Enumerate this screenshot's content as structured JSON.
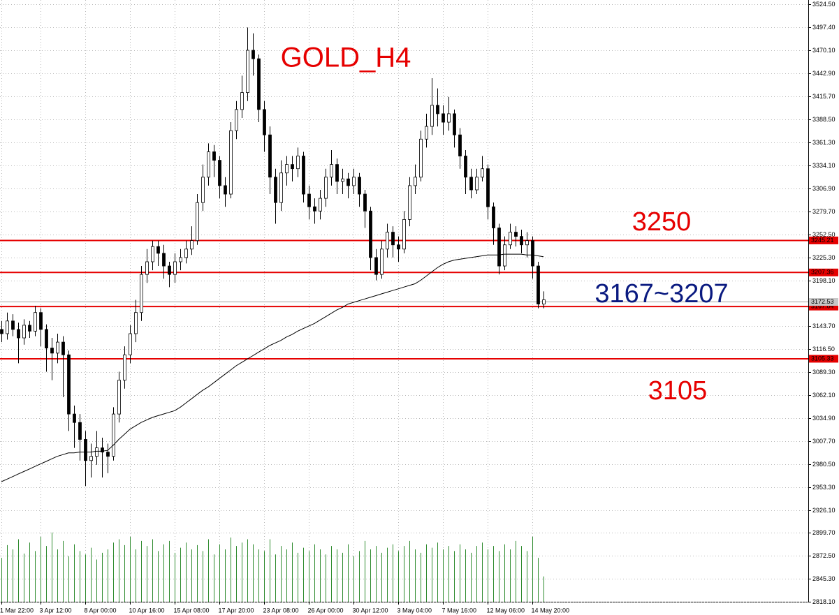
{
  "chart_data": {
    "type": "candlestick",
    "title": "GOLD_H4",
    "categories": [
      "1 Mar 22:00",
      null,
      null,
      null,
      null,
      null,
      null,
      "3 Apr 12:00",
      null,
      null,
      null,
      null,
      null,
      null,
      null,
      "8 Apr 00:00",
      null,
      null,
      null,
      null,
      null,
      null,
      null,
      "10 Apr 16:00",
      null,
      null,
      null,
      null,
      null,
      null,
      null,
      "15 Apr 08:00",
      null,
      null,
      null,
      null,
      null,
      null,
      null,
      "17 Apr 20:00",
      null,
      null,
      null,
      null,
      null,
      null,
      null,
      "23 Apr 08:00",
      null,
      null,
      null,
      null,
      null,
      null,
      null,
      "26 Apr 00:00",
      null,
      null,
      null,
      null,
      null,
      null,
      null,
      "30 Apr 12:00",
      null,
      null,
      null,
      null,
      null,
      null,
      null,
      "3 May 04:00",
      null,
      null,
      null,
      null,
      null,
      null,
      null,
      "7 May 16:00",
      null,
      null,
      null,
      null,
      null,
      null,
      null,
      "12 May 06:00",
      null,
      null,
      null,
      null,
      null,
      null,
      null,
      "14 May 20:00",
      null,
      null
    ],
    "open": [
      3140,
      3135,
      3150,
      3140,
      3130,
      3145,
      3138,
      3160,
      3140,
      3118,
      3112,
      3125,
      3110,
      3040,
      3030,
      3010,
      2985,
      2990,
      3000,
      2995,
      2990,
      3040,
      3080,
      3110,
      3135,
      3160,
      3205,
      3220,
      3238,
      3230,
      3215,
      3205,
      3220,
      3225,
      3235,
      3245,
      3290,
      3320,
      3350,
      3340,
      3310,
      3300,
      3375,
      3400,
      3420,
      3470,
      3460,
      3400,
      3370,
      3320,
      3290,
      3325,
      3335,
      3330,
      3345,
      3300,
      3285,
      3280,
      3295,
      3320,
      3335,
      3315,
      3318,
      3310,
      3320,
      3300,
      3280,
      3225,
      3205,
      3235,
      3255,
      3240,
      3235,
      3270,
      3310,
      3320,
      3365,
      3380,
      3405,
      3395,
      3385,
      3395,
      3370,
      3345,
      3320,
      3305,
      3320,
      3330,
      3285,
      3260,
      3215,
      3240,
      3255,
      3250,
      3240,
      3245,
      3215,
      3170
    ],
    "high": [
      3150,
      3160,
      3158,
      3148,
      3152,
      3150,
      3168,
      3165,
      3146,
      3130,
      3135,
      3132,
      3115,
      3050,
      3040,
      3020,
      3005,
      3020,
      3012,
      3005,
      3048,
      3090,
      3120,
      3145,
      3175,
      3215,
      3235,
      3245,
      3245,
      3240,
      3220,
      3230,
      3235,
      3245,
      3262,
      3300,
      3335,
      3360,
      3358,
      3345,
      3320,
      3385,
      3410,
      3440,
      3497,
      3490,
      3465,
      3410,
      3380,
      3330,
      3340,
      3345,
      3345,
      3355,
      3350,
      3310,
      3295,
      3305,
      3330,
      3352,
      3342,
      3330,
      3325,
      3330,
      3325,
      3305,
      3285,
      3235,
      3245,
      3265,
      3262,
      3250,
      3280,
      3320,
      3335,
      3375,
      3395,
      3437,
      3425,
      3405,
      3415,
      3400,
      3378,
      3352,
      3330,
      3330,
      3345,
      3335,
      3290,
      3265,
      3250,
      3265,
      3262,
      3258,
      3255,
      3250,
      3220,
      3185
    ],
    "low": [
      3125,
      3128,
      3132,
      3100,
      3122,
      3130,
      3132,
      3120,
      3090,
      3080,
      3100,
      3060,
      3020,
      3000,
      2985,
      2955,
      2965,
      2980,
      2965,
      2970,
      2985,
      3030,
      3070,
      3100,
      3125,
      3150,
      3195,
      3210,
      3215,
      3200,
      3190,
      3195,
      3210,
      3218,
      3228,
      3240,
      3280,
      3310,
      3320,
      3295,
      3285,
      3295,
      3365,
      3390,
      3410,
      3440,
      3385,
      3350,
      3300,
      3265,
      3280,
      3310,
      3315,
      3320,
      3290,
      3270,
      3265,
      3270,
      3285,
      3310,
      3300,
      3300,
      3295,
      3300,
      3285,
      3260,
      3210,
      3198,
      3200,
      3225,
      3225,
      3220,
      3230,
      3262,
      3300,
      3315,
      3355,
      3370,
      3380,
      3370,
      3375,
      3355,
      3330,
      3300,
      3295,
      3300,
      3315,
      3270,
      3240,
      3205,
      3210,
      3235,
      3238,
      3230,
      3225,
      3200,
      3165,
      3165
    ],
    "close": [
      3135,
      3150,
      3140,
      3130,
      3145,
      3138,
      3160,
      3140,
      3118,
      3112,
      3125,
      3110,
      3040,
      3030,
      3010,
      2985,
      2990,
      3000,
      2995,
      2990,
      3040,
      3080,
      3110,
      3135,
      3160,
      3205,
      3220,
      3238,
      3230,
      3215,
      3205,
      3220,
      3225,
      3235,
      3245,
      3290,
      3320,
      3350,
      3340,
      3310,
      3300,
      3375,
      3400,
      3420,
      3470,
      3460,
      3400,
      3370,
      3320,
      3290,
      3325,
      3335,
      3330,
      3345,
      3300,
      3285,
      3280,
      3295,
      3320,
      3335,
      3315,
      3318,
      3310,
      3320,
      3300,
      3280,
      3225,
      3205,
      3235,
      3255,
      3240,
      3235,
      3270,
      3310,
      3320,
      3365,
      3380,
      3405,
      3395,
      3385,
      3395,
      3370,
      3345,
      3320,
      3305,
      3320,
      3330,
      3285,
      3260,
      3215,
      3240,
      3255,
      3250,
      3240,
      3245,
      3215,
      3170,
      3175
    ],
    "ma": [
      2960,
      2963,
      2966,
      2969,
      2972,
      2975,
      2978,
      2981,
      2984,
      2987,
      2990,
      2992,
      2994,
      2994,
      2995,
      2995,
      2995,
      2996,
      2996,
      2997,
      3003,
      3010,
      3016,
      3022,
      3026,
      3030,
      3033,
      3036,
      3038,
      3040,
      3042,
      3044,
      3048,
      3053,
      3058,
      3063,
      3068,
      3072,
      3077,
      3082,
      3087,
      3092,
      3097,
      3101,
      3105,
      3109,
      3113,
      3117,
      3121,
      3124,
      3127,
      3131,
      3134,
      3138,
      3141,
      3144,
      3147,
      3151,
      3155,
      3159,
      3163,
      3166,
      3170,
      3172,
      3174,
      3176,
      3178,
      3180,
      3182,
      3184,
      3186,
      3188,
      3190,
      3192,
      3194,
      3198,
      3203,
      3208,
      3213,
      3217,
      3220,
      3222,
      3223,
      3224,
      3225,
      3226,
      3227,
      3228,
      3228,
      3228,
      3229,
      3229,
      3229,
      3229,
      3228,
      3228,
      3227,
      3226
    ],
    "volume": [
      2870,
      2885,
      2880,
      2892,
      2875,
      2888,
      2878,
      2895,
      2884,
      2900,
      2880,
      2890,
      2872,
      2886,
      2878,
      2874,
      2882,
      2868,
      2876,
      2880,
      2888,
      2892,
      2885,
      2895,
      2880,
      2890,
      2884,
      2892,
      2878,
      2886,
      2890,
      2876,
      2882,
      2888,
      2880,
      2885,
      2878,
      2892,
      2874,
      2886,
      2880,
      2894,
      2884,
      2888,
      2892,
      2886,
      2880,
      2878,
      2892,
      2874,
      2884,
      2880,
      2888,
      2876,
      2882,
      2878,
      2886,
      2880,
      2874,
      2884,
      2880,
      2876,
      2886,
      2872,
      2878,
      2890,
      2880,
      2884,
      2876,
      2882,
      2886,
      2878,
      2884,
      2890,
      2880,
      2876,
      2886,
      2882,
      2888,
      2880,
      2884,
      2878,
      2886,
      2880,
      2876,
      2884,
      2888,
      2880,
      2884,
      2878,
      2886,
      2880,
      2890,
      2884,
      2878,
      2895,
      2870,
      2848
    ],
    "up_color": "#ffffff",
    "down_color": "#000000",
    "ma_color": "#000000",
    "volume_color": "#2e8b2e",
    "ylim": [
      2818.1,
      3524.5
    ],
    "yticks": [
      {
        "value": 3524.5,
        "label": "3524.50"
      },
      {
        "value": 3497.4,
        "label": "3497.40"
      },
      {
        "value": 3470.1,
        "label": "3470.10"
      },
      {
        "value": 3442.9,
        "label": "3442.90"
      },
      {
        "value": 3415.7,
        "label": "3415.70"
      },
      {
        "value": 3388.5,
        "label": "3388.50"
      },
      {
        "value": 3361.3,
        "label": "3361.30"
      },
      {
        "value": 3334.1,
        "label": "3334.10"
      },
      {
        "value": 3306.9,
        "label": "3306.90"
      },
      {
        "value": 3279.7,
        "label": "3279.70"
      },
      {
        "value": 3252.5,
        "label": "3252.50"
      },
      {
        "value": 3225.3,
        "label": "3225.30"
      },
      {
        "value": 3198.1,
        "label": "3198.10"
      },
      {
        "value": 3143.7,
        "label": "3143.70"
      },
      {
        "value": 3116.5,
        "label": "3116.50"
      },
      {
        "value": 3089.3,
        "label": "3089.30"
      },
      {
        "value": 3062.1,
        "label": "3062.10"
      },
      {
        "value": 3034.9,
        "label": "3034.90"
      },
      {
        "value": 3007.7,
        "label": "3007.70"
      },
      {
        "value": 2980.5,
        "label": "2980.50"
      },
      {
        "value": 2953.3,
        "label": "2953.30"
      },
      {
        "value": 2926.1,
        "label": "2926.10"
      },
      {
        "value": 2899.7,
        "label": "2899.70"
      },
      {
        "value": 2872.5,
        "label": "2872.50"
      },
      {
        "value": 2845.3,
        "label": "2845.30"
      },
      {
        "value": 2818.1,
        "label": "2818.10"
      }
    ],
    "grid": true,
    "levels": [
      3245.21,
      3207.36,
      3167.04,
      3105.33
    ],
    "level_color": "#e60000",
    "current_price": 3172.53,
    "annotations": [
      {
        "text": "3250",
        "color": "#e60000"
      },
      {
        "text": "3167~3207",
        "color": "#0a1a80"
      },
      {
        "text": "3105",
        "color": "#e60000"
      }
    ],
    "title_color": "#e60000"
  }
}
